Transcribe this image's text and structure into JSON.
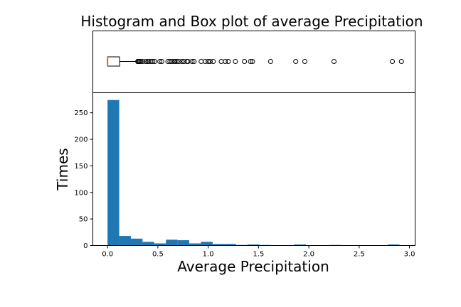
{
  "chart_data": {
    "title": "Histogram and Box plot of average Precipitation",
    "type": "histogram-with-boxplot",
    "boxplot": {
      "orientation": "horizontal",
      "whisker_low": 0.0,
      "q1": 0.0,
      "median": 0.0,
      "q3": 0.12,
      "whisker_high": 0.29,
      "outliers": [
        0.3,
        0.31,
        0.32,
        0.33,
        0.35,
        0.38,
        0.4,
        0.41,
        0.43,
        0.45,
        0.47,
        0.52,
        0.54,
        0.6,
        0.62,
        0.64,
        0.66,
        0.67,
        0.69,
        0.71,
        0.74,
        0.76,
        0.79,
        0.8,
        0.84,
        0.86,
        0.93,
        0.97,
        1.0,
        1.02,
        1.05,
        1.13,
        1.17,
        1.2,
        1.27,
        1.36,
        1.42,
        1.44,
        1.62,
        1.87,
        1.96,
        2.25,
        2.83,
        2.92
      ]
    },
    "histogram": {
      "bin_width": 0.116,
      "bins": [
        {
          "x0": 0.0,
          "count": 274
        },
        {
          "x0": 0.116,
          "count": 18
        },
        {
          "x0": 0.232,
          "count": 13
        },
        {
          "x0": 0.348,
          "count": 7
        },
        {
          "x0": 0.464,
          "count": 4
        },
        {
          "x0": 0.58,
          "count": 11
        },
        {
          "x0": 0.696,
          "count": 10
        },
        {
          "x0": 0.812,
          "count": 4
        },
        {
          "x0": 0.928,
          "count": 7
        },
        {
          "x0": 1.044,
          "count": 3
        },
        {
          "x0": 1.16,
          "count": 3
        },
        {
          "x0": 1.276,
          "count": 1
        },
        {
          "x0": 1.392,
          "count": 2
        },
        {
          "x0": 1.508,
          "count": 1
        },
        {
          "x0": 1.624,
          "count": 0
        },
        {
          "x0": 1.74,
          "count": 0
        },
        {
          "x0": 1.856,
          "count": 2
        },
        {
          "x0": 1.972,
          "count": 0
        },
        {
          "x0": 2.088,
          "count": 0
        },
        {
          "x0": 2.204,
          "count": 1
        },
        {
          "x0": 2.32,
          "count": 0
        },
        {
          "x0": 2.436,
          "count": 0
        },
        {
          "x0": 2.552,
          "count": 0
        },
        {
          "x0": 2.668,
          "count": 0
        },
        {
          "x0": 2.784,
          "count": 2
        }
      ],
      "color": "#1f77b4"
    },
    "xlabel": "Average Precipitation",
    "ylabel": "Times",
    "xlim": [
      -0.146,
      3.056
    ],
    "ylim": [
      0,
      287.7
    ],
    "xticks": [
      0.0,
      0.5,
      1.0,
      1.5,
      2.0,
      2.5,
      3.0
    ],
    "xtick_labels": [
      "0.0",
      "0.5",
      "1.0",
      "1.5",
      "2.0",
      "2.5",
      "3.0"
    ],
    "yticks": [
      0,
      50,
      100,
      150,
      200,
      250
    ],
    "ytick_labels": [
      "0",
      "50",
      "100",
      "150",
      "200",
      "250"
    ],
    "grid": false,
    "legend": false
  }
}
